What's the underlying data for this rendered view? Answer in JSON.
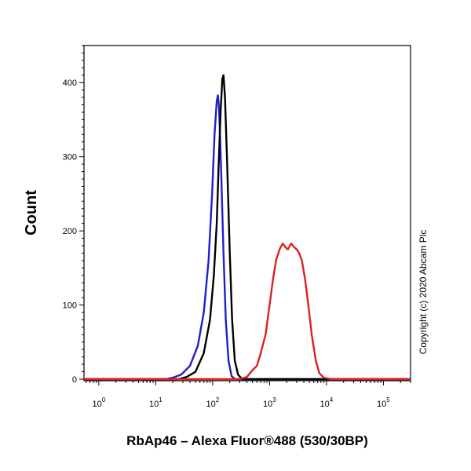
{
  "chart_data": {
    "type": "line",
    "title": "",
    "xlabel": "RbAp46 – Alexa Fluor®488 (530/30BP)",
    "ylabel": "Count",
    "x_scale": "log",
    "xlim": [
      0.55,
      300000
    ],
    "ylim": [
      0,
      450
    ],
    "grid": false,
    "legend": "none",
    "x_ticks": [
      {
        "base": "10",
        "exp": "0",
        "value": 1
      },
      {
        "base": "10",
        "exp": "1",
        "value": 10
      },
      {
        "base": "10",
        "exp": "2",
        "value": 100
      },
      {
        "base": "10",
        "exp": "3",
        "value": 1000
      },
      {
        "base": "10",
        "exp": "4",
        "value": 10000
      },
      {
        "base": "10",
        "exp": "5",
        "value": 100000
      }
    ],
    "y_ticks": [
      "0",
      "100",
      "200",
      "300",
      "400"
    ],
    "y_tick_values": [
      0,
      100,
      200,
      300,
      400
    ],
    "series": [
      {
        "color": "#1f1fcc",
        "points": [
          [
            0.55,
            0
          ],
          [
            15,
            0
          ],
          [
            20,
            2
          ],
          [
            28,
            6
          ],
          [
            40,
            18
          ],
          [
            55,
            45
          ],
          [
            70,
            90
          ],
          [
            85,
            160
          ],
          [
            98,
            250
          ],
          [
            108,
            330
          ],
          [
            118,
            375
          ],
          [
            124,
            383
          ],
          [
            130,
            365
          ],
          [
            140,
            290
          ],
          [
            155,
            170
          ],
          [
            170,
            80
          ],
          [
            190,
            25
          ],
          [
            215,
            4
          ],
          [
            250,
            0
          ],
          [
            300000,
            0
          ]
        ]
      },
      {
        "color": "#000000",
        "points": [
          [
            0.55,
            0
          ],
          [
            25,
            0
          ],
          [
            35,
            3
          ],
          [
            50,
            10
          ],
          [
            70,
            35
          ],
          [
            90,
            80
          ],
          [
            105,
            140
          ],
          [
            118,
            210
          ],
          [
            128,
            290
          ],
          [
            138,
            360
          ],
          [
            148,
            405
          ],
          [
            155,
            410
          ],
          [
            165,
            380
          ],
          [
            180,
            290
          ],
          [
            200,
            170
          ],
          [
            220,
            80
          ],
          [
            245,
            25
          ],
          [
            280,
            6
          ],
          [
            330,
            0
          ],
          [
            300000,
            0
          ]
        ]
      },
      {
        "color": "#dd2020",
        "points": [
          [
            0.55,
            0
          ],
          [
            300,
            0
          ],
          [
            400,
            3
          ],
          [
            500,
            12
          ],
          [
            600,
            18
          ],
          [
            700,
            35
          ],
          [
            850,
            60
          ],
          [
            1000,
            100
          ],
          [
            1150,
            135
          ],
          [
            1300,
            160
          ],
          [
            1500,
            175
          ],
          [
            1700,
            183
          ],
          [
            1900,
            178
          ],
          [
            2100,
            175
          ],
          [
            2400,
            183
          ],
          [
            2700,
            178
          ],
          [
            3000,
            175
          ],
          [
            3300,
            170
          ],
          [
            3700,
            160
          ],
          [
            4200,
            135
          ],
          [
            4800,
            100
          ],
          [
            5500,
            60
          ],
          [
            6500,
            25
          ],
          [
            7500,
            8
          ],
          [
            9000,
            2
          ],
          [
            12000,
            0
          ],
          [
            300000,
            0
          ]
        ]
      }
    ]
  },
  "copyright": "Copyright (c) 2020 Abcam Plc"
}
